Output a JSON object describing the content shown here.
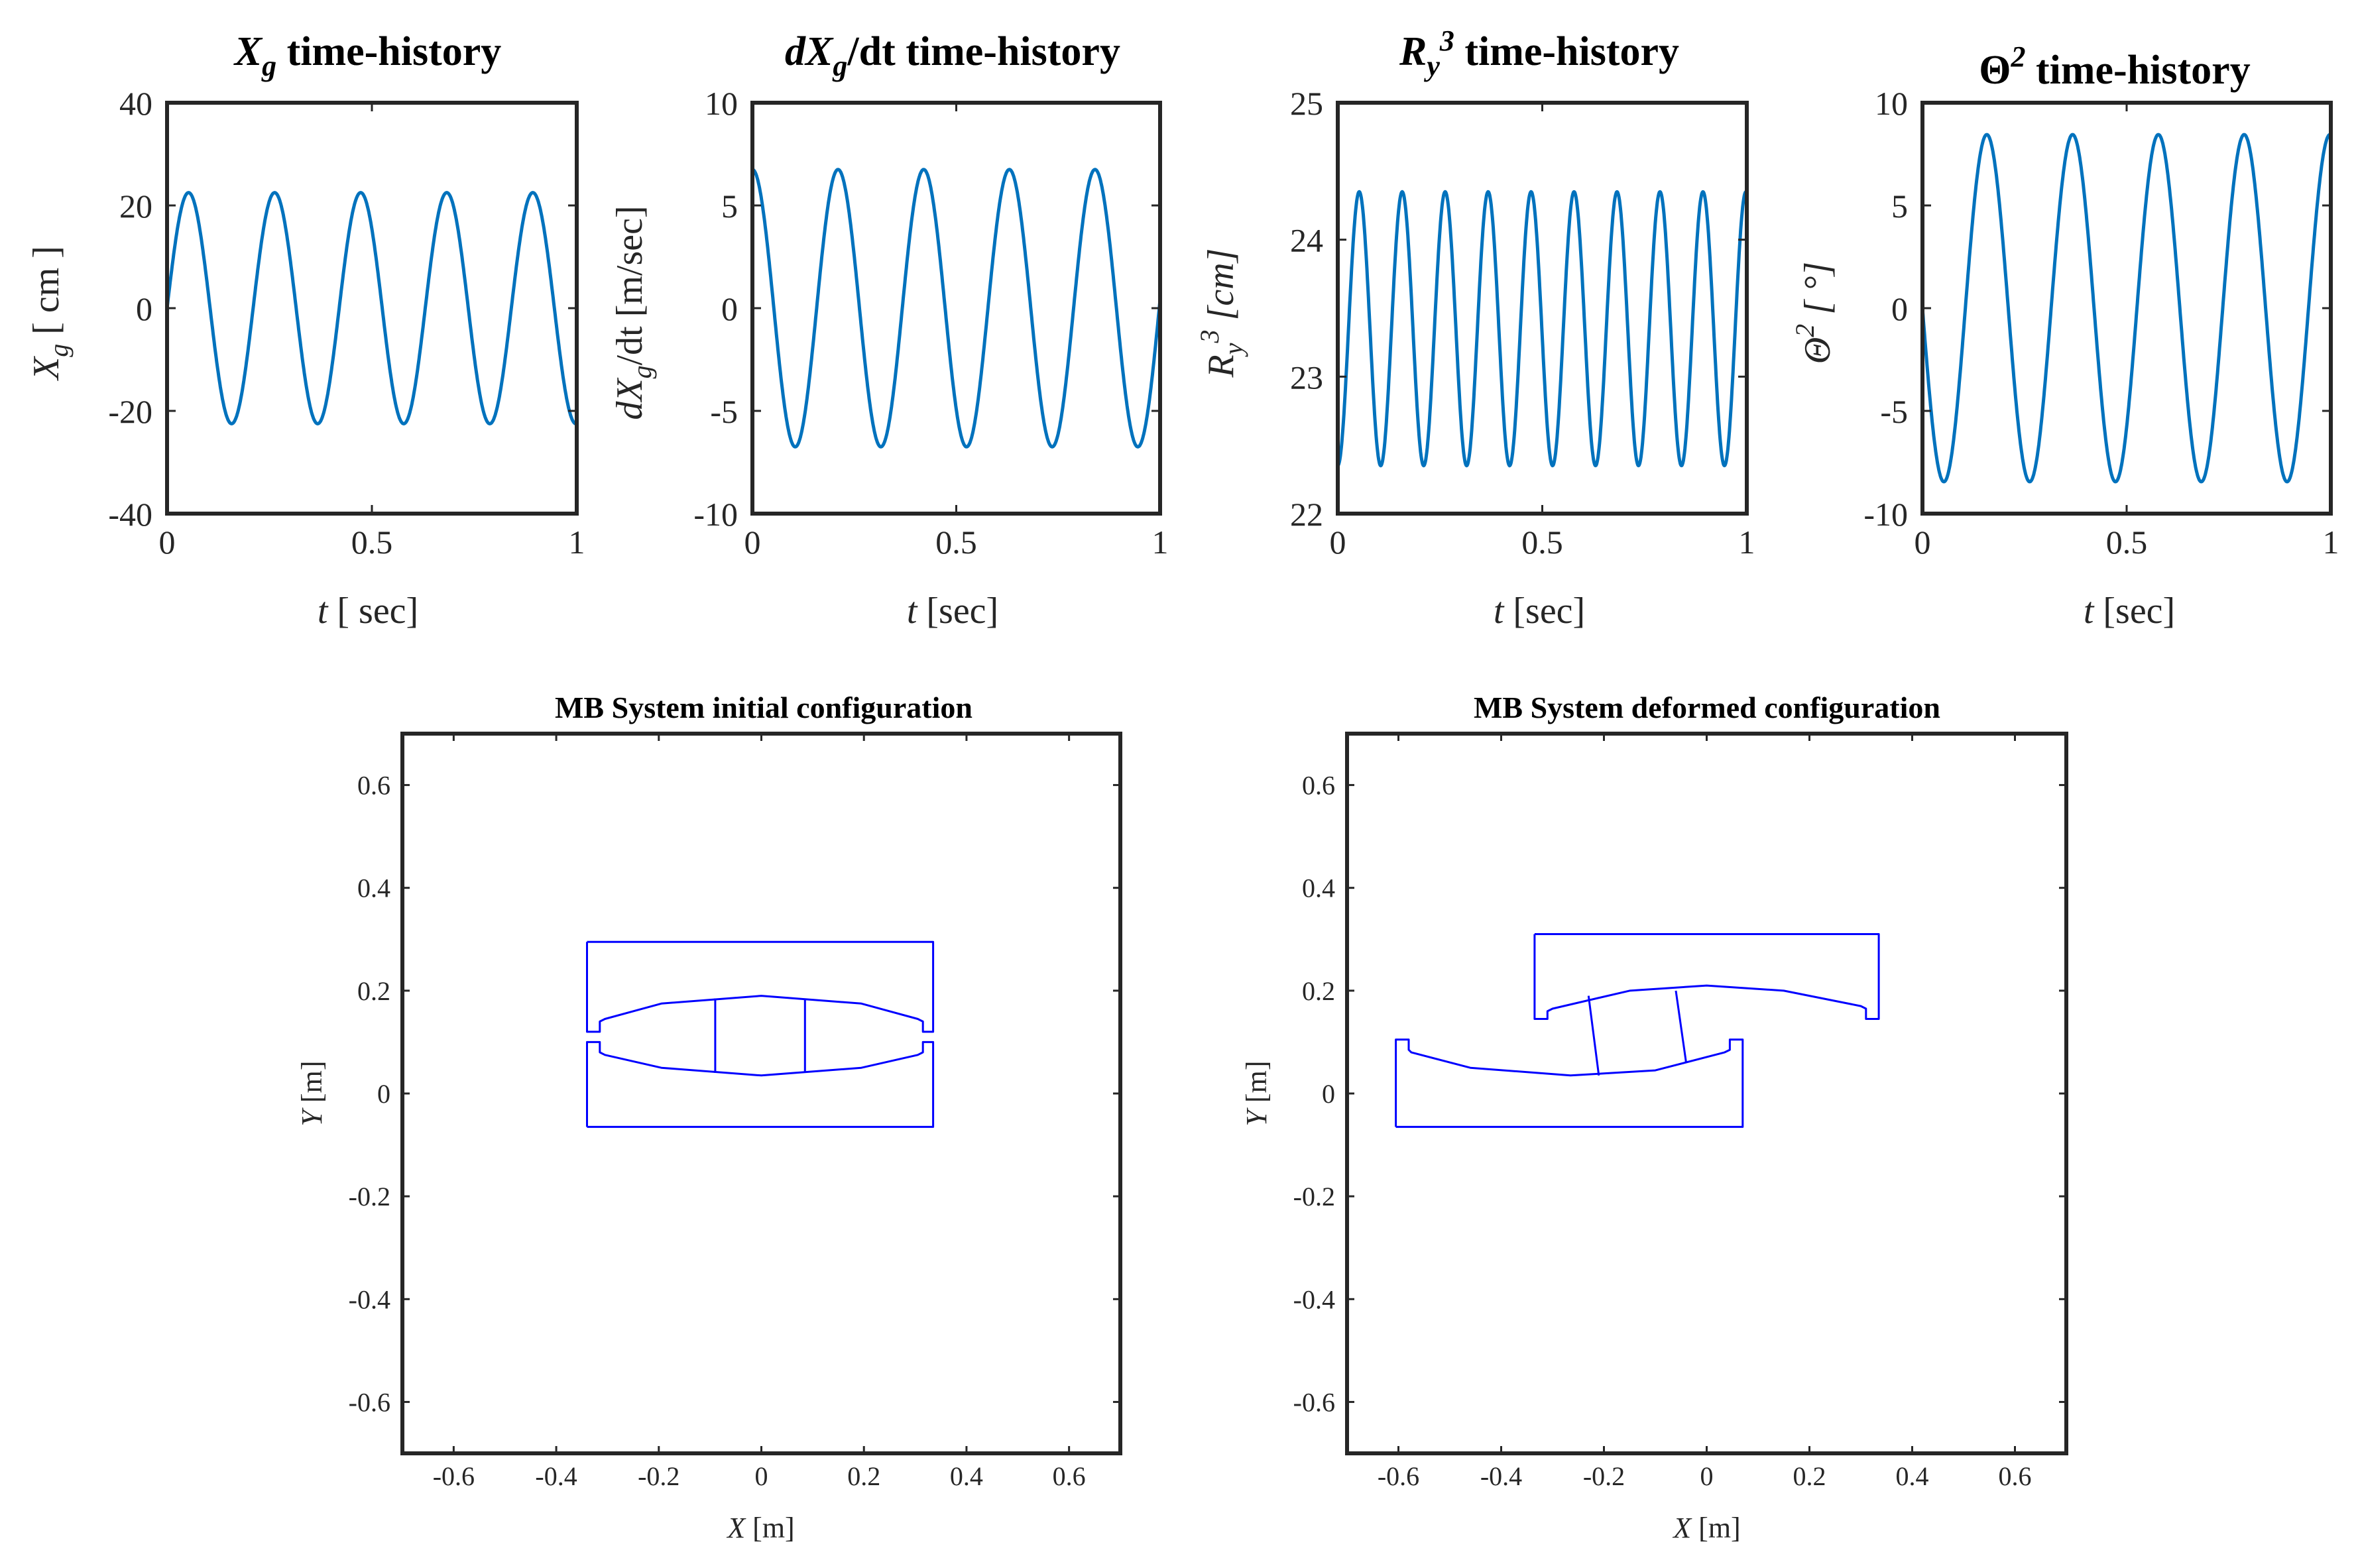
{
  "colors": {
    "series": "#0072BD",
    "mb": "#0000FF",
    "axis": "#262626"
  },
  "chart_data": [
    {
      "type": "line",
      "title": "Xg time-history",
      "title_base": "X",
      "title_sub": "g",
      "title_rest": " time-history",
      "xlabel": "t [ sec]",
      "xlabel_t": "t",
      "xlabel_rest": " [ sec]",
      "ylabel": "Xg [ cm ]",
      "ylabel_base": "X",
      "ylabel_sub": "g",
      "ylabel_rest": " [ cm ]",
      "xlim": [
        0,
        1
      ],
      "ylim": [
        -40,
        40
      ],
      "xticks": [
        "0",
        "0.5",
        "1"
      ],
      "yticks": [
        "40",
        "20",
        "0",
        "-20",
        "-40"
      ],
      "series": [
        {
          "name": "Xg",
          "function": "sine",
          "amplitude": 22.5,
          "frequency_hz": 4.76,
          "phase_rad": 0,
          "offset": 0,
          "x_range": [
            0,
            1
          ]
        }
      ]
    },
    {
      "type": "line",
      "title": "dXg/dt time-history",
      "title_base": "dX",
      "title_sub": "g",
      "title_rest": "/dt time-history",
      "xlabel": "t [sec]",
      "xlabel_t": "t",
      "xlabel_rest": " [sec]",
      "ylabel": "dXg/dt [m/sec]",
      "ylabel_base": "dX",
      "ylabel_sub": "g",
      "ylabel_rest": "/dt [m/sec]",
      "xlim": [
        0,
        1
      ],
      "ylim": [
        -10,
        10
      ],
      "xticks": [
        "0",
        "0.5",
        "1"
      ],
      "yticks": [
        "10",
        "5",
        "0",
        "-5",
        "-10"
      ],
      "series": [
        {
          "name": "dXg/dt",
          "function": "sine",
          "amplitude": 6.75,
          "frequency_hz": 4.76,
          "phase_rad": 1.5708,
          "offset": 0,
          "x_range": [
            0,
            1
          ]
        }
      ]
    },
    {
      "type": "line",
      "title": "Ry3 time-history",
      "title_base": "R",
      "title_sub": "y",
      "title_sup": "3",
      "title_rest": " time-history",
      "xlabel": "t [sec]",
      "xlabel_t": "t",
      "xlabel_rest": " [sec]",
      "ylabel": "Ry3 [cm]",
      "ylabel_base": "R",
      "ylabel_sub": "y",
      "ylabel_sup": "3",
      "ylabel_rest": " [cm]",
      "xlim": [
        0,
        1
      ],
      "ylim": [
        22,
        25
      ],
      "xticks": [
        "0",
        "0.5",
        "1"
      ],
      "yticks": [
        "25",
        "24",
        "23",
        "22"
      ],
      "series": [
        {
          "name": "Ry3",
          "function": "sine",
          "amplitude": 1.0,
          "frequency_hz": 9.52,
          "phase_rad": -1.5708,
          "offset": 23.35,
          "x_range": [
            0,
            1
          ]
        }
      ]
    },
    {
      "type": "line",
      "title": "Θ2 time-history",
      "title_base": "Θ",
      "title_sup": "2",
      "title_rest": "  time-history",
      "xlabel": "t [sec]",
      "xlabel_t": "t",
      "xlabel_rest": " [sec]",
      "ylabel": "Θ2 [ °]",
      "ylabel_base": "Θ",
      "ylabel_sup": "2",
      "ylabel_rest": " [ °]",
      "xlim": [
        0,
        1
      ],
      "ylim": [
        -10,
        10
      ],
      "xticks": [
        "0",
        "0.5",
        "1"
      ],
      "yticks": [
        "10",
        "5",
        "0",
        "-5",
        "-10"
      ],
      "series": [
        {
          "name": "Θ2",
          "function": "sine",
          "amplitude": 8.45,
          "frequency_hz": 4.76,
          "phase_rad": 3.1416,
          "offset": 0,
          "x_range": [
            0,
            1
          ]
        }
      ]
    },
    {
      "type": "line",
      "title": "MB System initial configuration",
      "xlabel": "X [m]",
      "xlabel_t": "X",
      "xlabel_rest": " [m]",
      "ylabel": "Y [m]",
      "ylabel_t": "Y",
      "ylabel_rest": " [m]",
      "xlim": [
        -0.7,
        0.7
      ],
      "ylim": [
        -0.7,
        0.7
      ],
      "xticks": [
        "-0.6",
        "-0.4",
        "-0.2",
        "0",
        "0.2",
        "0.4",
        "0.6"
      ],
      "yticks": [
        "0.6",
        "0.4",
        "0.2",
        "0",
        "-0.2",
        "-0.4",
        "-0.6"
      ],
      "series": [
        {
          "name": "upper plate",
          "points": [
            [
              -0.34,
              0.295
            ],
            [
              0.335,
              0.295
            ],
            [
              0.335,
              0.12
            ],
            [
              0.315,
              0.12
            ],
            [
              0.315,
              0.14
            ],
            [
              0.305,
              0.145
            ],
            [
              0.195,
              0.175
            ],
            [
              0,
              0.19
            ],
            [
              -0.195,
              0.175
            ],
            [
              -0.305,
              0.145
            ],
            [
              -0.315,
              0.14
            ],
            [
              -0.315,
              0.12
            ],
            [
              -0.34,
              0.12
            ],
            [
              -0.34,
              0.295
            ]
          ]
        },
        {
          "name": "lower plate",
          "points": [
            [
              -0.34,
              -0.065
            ],
            [
              0.335,
              -0.065
            ],
            [
              0.335,
              0.1
            ],
            [
              0.315,
              0.1
            ],
            [
              0.315,
              0.08
            ],
            [
              0.305,
              0.075
            ],
            [
              0.195,
              0.05
            ],
            [
              0,
              0.035
            ],
            [
              -0.195,
              0.05
            ],
            [
              -0.305,
              0.075
            ],
            [
              -0.315,
              0.08
            ],
            [
              -0.315,
              0.1
            ],
            [
              -0.34,
              0.1
            ],
            [
              -0.34,
              -0.065
            ]
          ]
        },
        {
          "name": "slider left",
          "points": [
            [
              -0.09,
              0.04
            ],
            [
              -0.09,
              0.185
            ]
          ]
        },
        {
          "name": "slider right",
          "points": [
            [
              0.085,
              0.04
            ],
            [
              0.085,
              0.185
            ]
          ]
        }
      ]
    },
    {
      "type": "line",
      "title": "MB System deformed configuration",
      "xlabel": "X [m]",
      "xlabel_t": "X",
      "xlabel_rest": " [m]",
      "ylabel": "Y [m]",
      "ylabel_t": "Y",
      "ylabel_rest": " [m]",
      "xlim": [
        -0.7,
        0.7
      ],
      "ylim": [
        -0.7,
        0.7
      ],
      "xticks": [
        "-0.6",
        "-0.4",
        "-0.2",
        "0",
        "0.2",
        "0.4",
        "0.6"
      ],
      "yticks": [
        "0.6",
        "0.4",
        "0.2",
        "0",
        "-0.2",
        "-0.4",
        "-0.6"
      ],
      "series": [
        {
          "name": "upper plate",
          "points": [
            [
              -0.335,
              0.31
            ],
            [
              0.335,
              0.31
            ],
            [
              0.335,
              0.145
            ],
            [
              0.31,
              0.145
            ],
            [
              0.31,
              0.165
            ],
            [
              0.3,
              0.17
            ],
            [
              0.15,
              0.2
            ],
            [
              0,
              0.21
            ],
            [
              -0.15,
              0.2
            ],
            [
              -0.3,
              0.165
            ],
            [
              -0.31,
              0.16
            ],
            [
              -0.31,
              0.145
            ],
            [
              -0.335,
              0.145
            ],
            [
              -0.335,
              0.31
            ]
          ]
        },
        {
          "name": "lower plate",
          "points": [
            [
              -0.605,
              -0.065
            ],
            [
              0.07,
              -0.065
            ],
            [
              0.07,
              0.105
            ],
            [
              0.045,
              0.105
            ],
            [
              0.045,
              0.085
            ],
            [
              0.035,
              0.08
            ],
            [
              -0.1,
              0.045
            ],
            [
              -0.265,
              0.035
            ],
            [
              -0.46,
              0.05
            ],
            [
              -0.575,
              0.08
            ],
            [
              -0.58,
              0.085
            ],
            [
              -0.58,
              0.105
            ],
            [
              -0.605,
              0.105
            ],
            [
              -0.605,
              -0.065
            ]
          ]
        },
        {
          "name": "slider left",
          "points": [
            [
              -0.21,
              0.035
            ],
            [
              -0.23,
              0.19
            ]
          ]
        },
        {
          "name": "slider right",
          "points": [
            [
              -0.04,
              0.06
            ],
            [
              -0.06,
              0.2
            ]
          ]
        }
      ]
    }
  ]
}
